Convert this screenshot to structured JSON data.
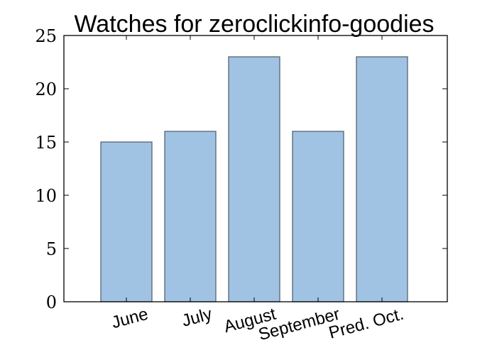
{
  "chart_data": {
    "type": "bar",
    "title": "Watches for zeroclickinfo-goodies",
    "xlabel": "",
    "ylabel": "",
    "categories": [
      "June",
      "July",
      "August",
      "September",
      "Pred. Oct."
    ],
    "values": [
      15,
      16,
      23,
      16,
      23
    ],
    "ylim": [
      0,
      25
    ],
    "yticks": [
      0,
      5,
      10,
      15,
      20,
      25
    ],
    "grid": false,
    "bar_color": "#a0c3e4",
    "bar_edge_color": "#4d5a66"
  }
}
